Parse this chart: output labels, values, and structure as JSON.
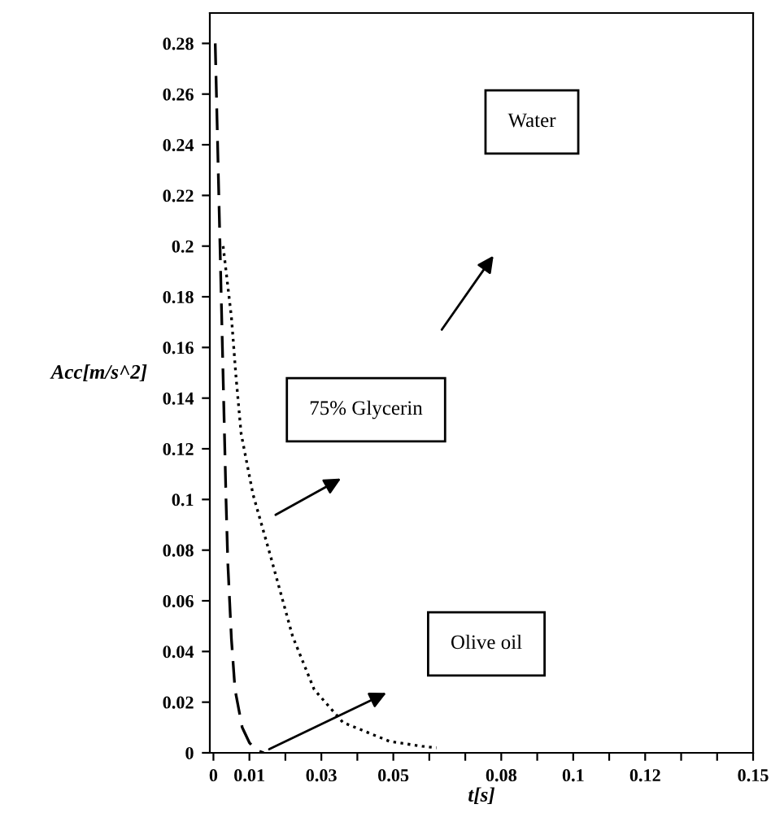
{
  "chart_data": {
    "type": "line",
    "xlabel": "t[s]",
    "ylabel": "Acc[m/s^2]",
    "xlim": [
      -0.001,
      0.15
    ],
    "ylim": [
      0,
      0.292
    ],
    "xticks": [
      0,
      0.01,
      {
        "value": 0.02,
        "label": null
      },
      0.03,
      {
        "value": 0.04,
        "label": null
      },
      0.05,
      {
        "value": 0.06,
        "label": null
      },
      {
        "value": 0.07,
        "label": null
      },
      0.08,
      {
        "value": 0.09,
        "label": null
      },
      0.1,
      {
        "value": 0.11,
        "label": null
      },
      0.12,
      {
        "value": 0.13,
        "label": null
      },
      {
        "value": 0.14,
        "label": null
      },
      0.15
    ],
    "yticks": [
      0,
      0.02,
      0.04,
      0.06,
      0.08,
      0.1,
      0.12,
      0.14,
      0.16,
      0.18,
      0.2,
      0.22,
      0.24,
      0.26,
      0.28
    ],
    "grid": false,
    "legend": false,
    "series": [
      {
        "color": "#000000",
        "line_style": "dashed",
        "x": [
          0.0005,
          0.001,
          0.0015,
          0.002,
          0.0025,
          0.003,
          0.0035,
          0.004,
          0.005,
          0.006,
          0.008,
          0.01,
          0.012,
          0.014
        ],
        "values": [
          0.28,
          0.25,
          0.22,
          0.19,
          0.16,
          0.13,
          0.1,
          0.075,
          0.045,
          0.025,
          0.01,
          0.004,
          0.001,
          0
        ]
      },
      {
        "color": "#000000",
        "line_style": "dotted",
        "x": [
          0.0027,
          0.005,
          0.0063,
          0.0077,
          0.011,
          0.016,
          0.022,
          0.028,
          0.036,
          0.049,
          0.058,
          0.062
        ],
        "values": [
          0.2,
          0.172,
          0.148,
          0.126,
          0.102,
          0.077,
          0.046,
          0.025,
          0.012,
          0.0045,
          0.0026,
          0.002
        ]
      }
    ],
    "annotations": [
      "Water",
      "75% Glycerin",
      "Olive oil"
    ]
  }
}
